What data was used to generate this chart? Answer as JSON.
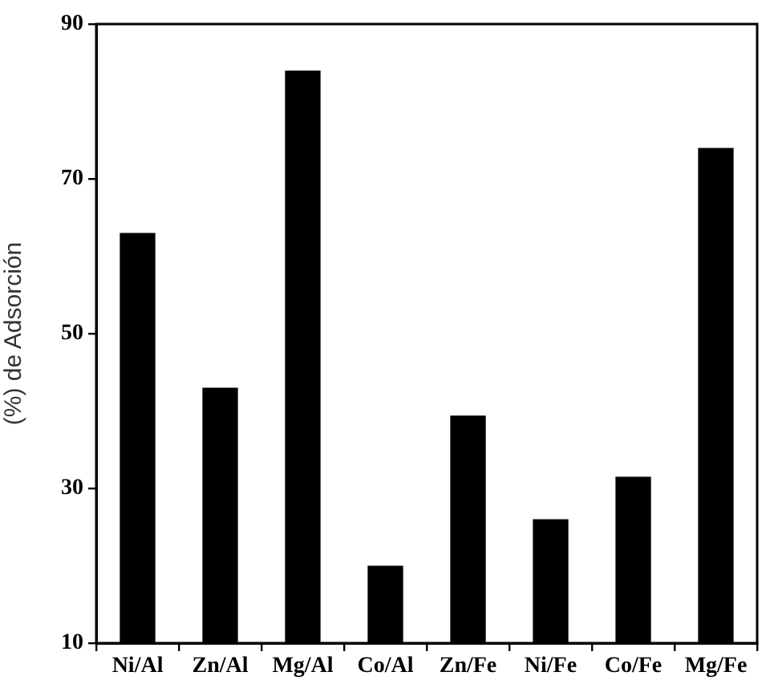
{
  "chart_data": {
    "type": "bar",
    "ylabel": "(%) de Adsorción",
    "categories": [
      "Ni/Al",
      "Zn/Al",
      "Mg/Al",
      "Co/Al",
      "Zn/Fe",
      "Ni/Fe",
      "Co/Fe",
      "Mg/Fe"
    ],
    "values": [
      63,
      43,
      84,
      20,
      39.4,
      26,
      31.5,
      74
    ],
    "color": "#000000",
    "ylim": [
      10,
      90
    ],
    "yticks": [
      10,
      30,
      50,
      70,
      90
    ],
    "grid": false
  }
}
